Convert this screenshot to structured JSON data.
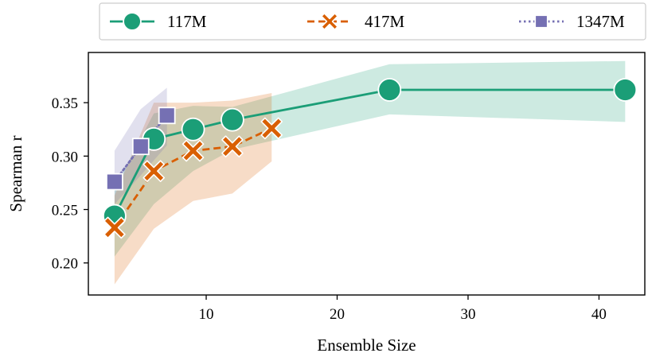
{
  "chart_data": {
    "type": "line",
    "xlabel": "Ensemble Size",
    "ylabel": "Spearman r",
    "xlim": [
      1,
      43.5
    ],
    "ylim": [
      0.17,
      0.397
    ],
    "x_ticks": [
      10,
      20,
      30,
      40
    ],
    "y_ticks": [
      0.2,
      0.25,
      0.3,
      0.35
    ],
    "x_tick_labels": [
      "10",
      "20",
      "30",
      "40"
    ],
    "y_tick_labels": [
      "0.20",
      "0.25",
      "0.30",
      "0.35"
    ],
    "legend_position": "top, outside plot, horizontal",
    "grid": false,
    "series": [
      {
        "name": "117M",
        "color": "#1b9e77",
        "marker": "circle",
        "line_style": "solid",
        "x": [
          3,
          6,
          9,
          12,
          24,
          42
        ],
        "y": [
          0.244,
          0.316,
          0.325,
          0.334,
          0.362,
          0.362
        ],
        "ci_lower": [
          0.206,
          0.255,
          0.286,
          0.306,
          0.339,
          0.332
        ],
        "ci_upper": [
          0.27,
          0.34,
          0.347,
          0.346,
          0.386,
          0.389
        ]
      },
      {
        "name": "417M",
        "color": "#d95f02",
        "marker": "x",
        "line_style": "dashed",
        "x": [
          3,
          6,
          9,
          12,
          15
        ],
        "y": [
          0.233,
          0.286,
          0.305,
          0.309,
          0.326
        ],
        "ci_lower": [
          0.18,
          0.232,
          0.258,
          0.265,
          0.295
        ],
        "ci_upper": [
          0.263,
          0.35,
          0.35,
          0.352,
          0.359
        ]
      },
      {
        "name": "1347M",
        "color": "#7570b3",
        "marker": "square",
        "line_style": "dotted",
        "x": [
          3,
          5,
          7
        ],
        "y": [
          0.276,
          0.309,
          0.338
        ],
        "ci_lower": [
          0.255,
          0.282,
          0.31
        ],
        "ci_upper": [
          0.305,
          0.344,
          0.364
        ]
      }
    ]
  }
}
